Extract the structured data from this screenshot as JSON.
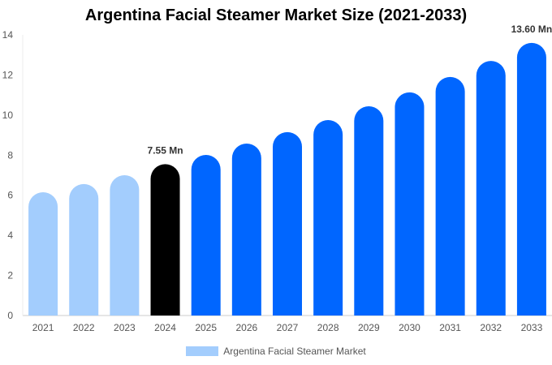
{
  "chart_data": {
    "type": "bar",
    "title": "Argentina Facial Steamer Market Size (2021-2033)",
    "categories": [
      "2021",
      "2022",
      "2023",
      "2024",
      "2025",
      "2026",
      "2027",
      "2028",
      "2029",
      "2030",
      "2031",
      "2032",
      "2033"
    ],
    "series": [
      {
        "name": "Argentina Facial Steamer Market",
        "values": [
          6.15,
          6.56,
          7.0,
          7.55,
          8.01,
          8.58,
          9.15,
          9.75,
          10.44,
          11.13,
          11.9,
          12.7,
          13.6
        ]
      }
    ],
    "data_labels": {
      "3": "7.55 Mn",
      "12": "13.60 Mn"
    },
    "ylim": [
      0,
      14
    ],
    "yticks": [
      0,
      2,
      4,
      6,
      8,
      10,
      12,
      14
    ],
    "grid": false,
    "legend_placement": "bottom",
    "colors": {
      "historical": "#a3cdfd",
      "base_year": "#000000",
      "forecast": "#0066ff",
      "legend": "#a3cdfd"
    }
  }
}
